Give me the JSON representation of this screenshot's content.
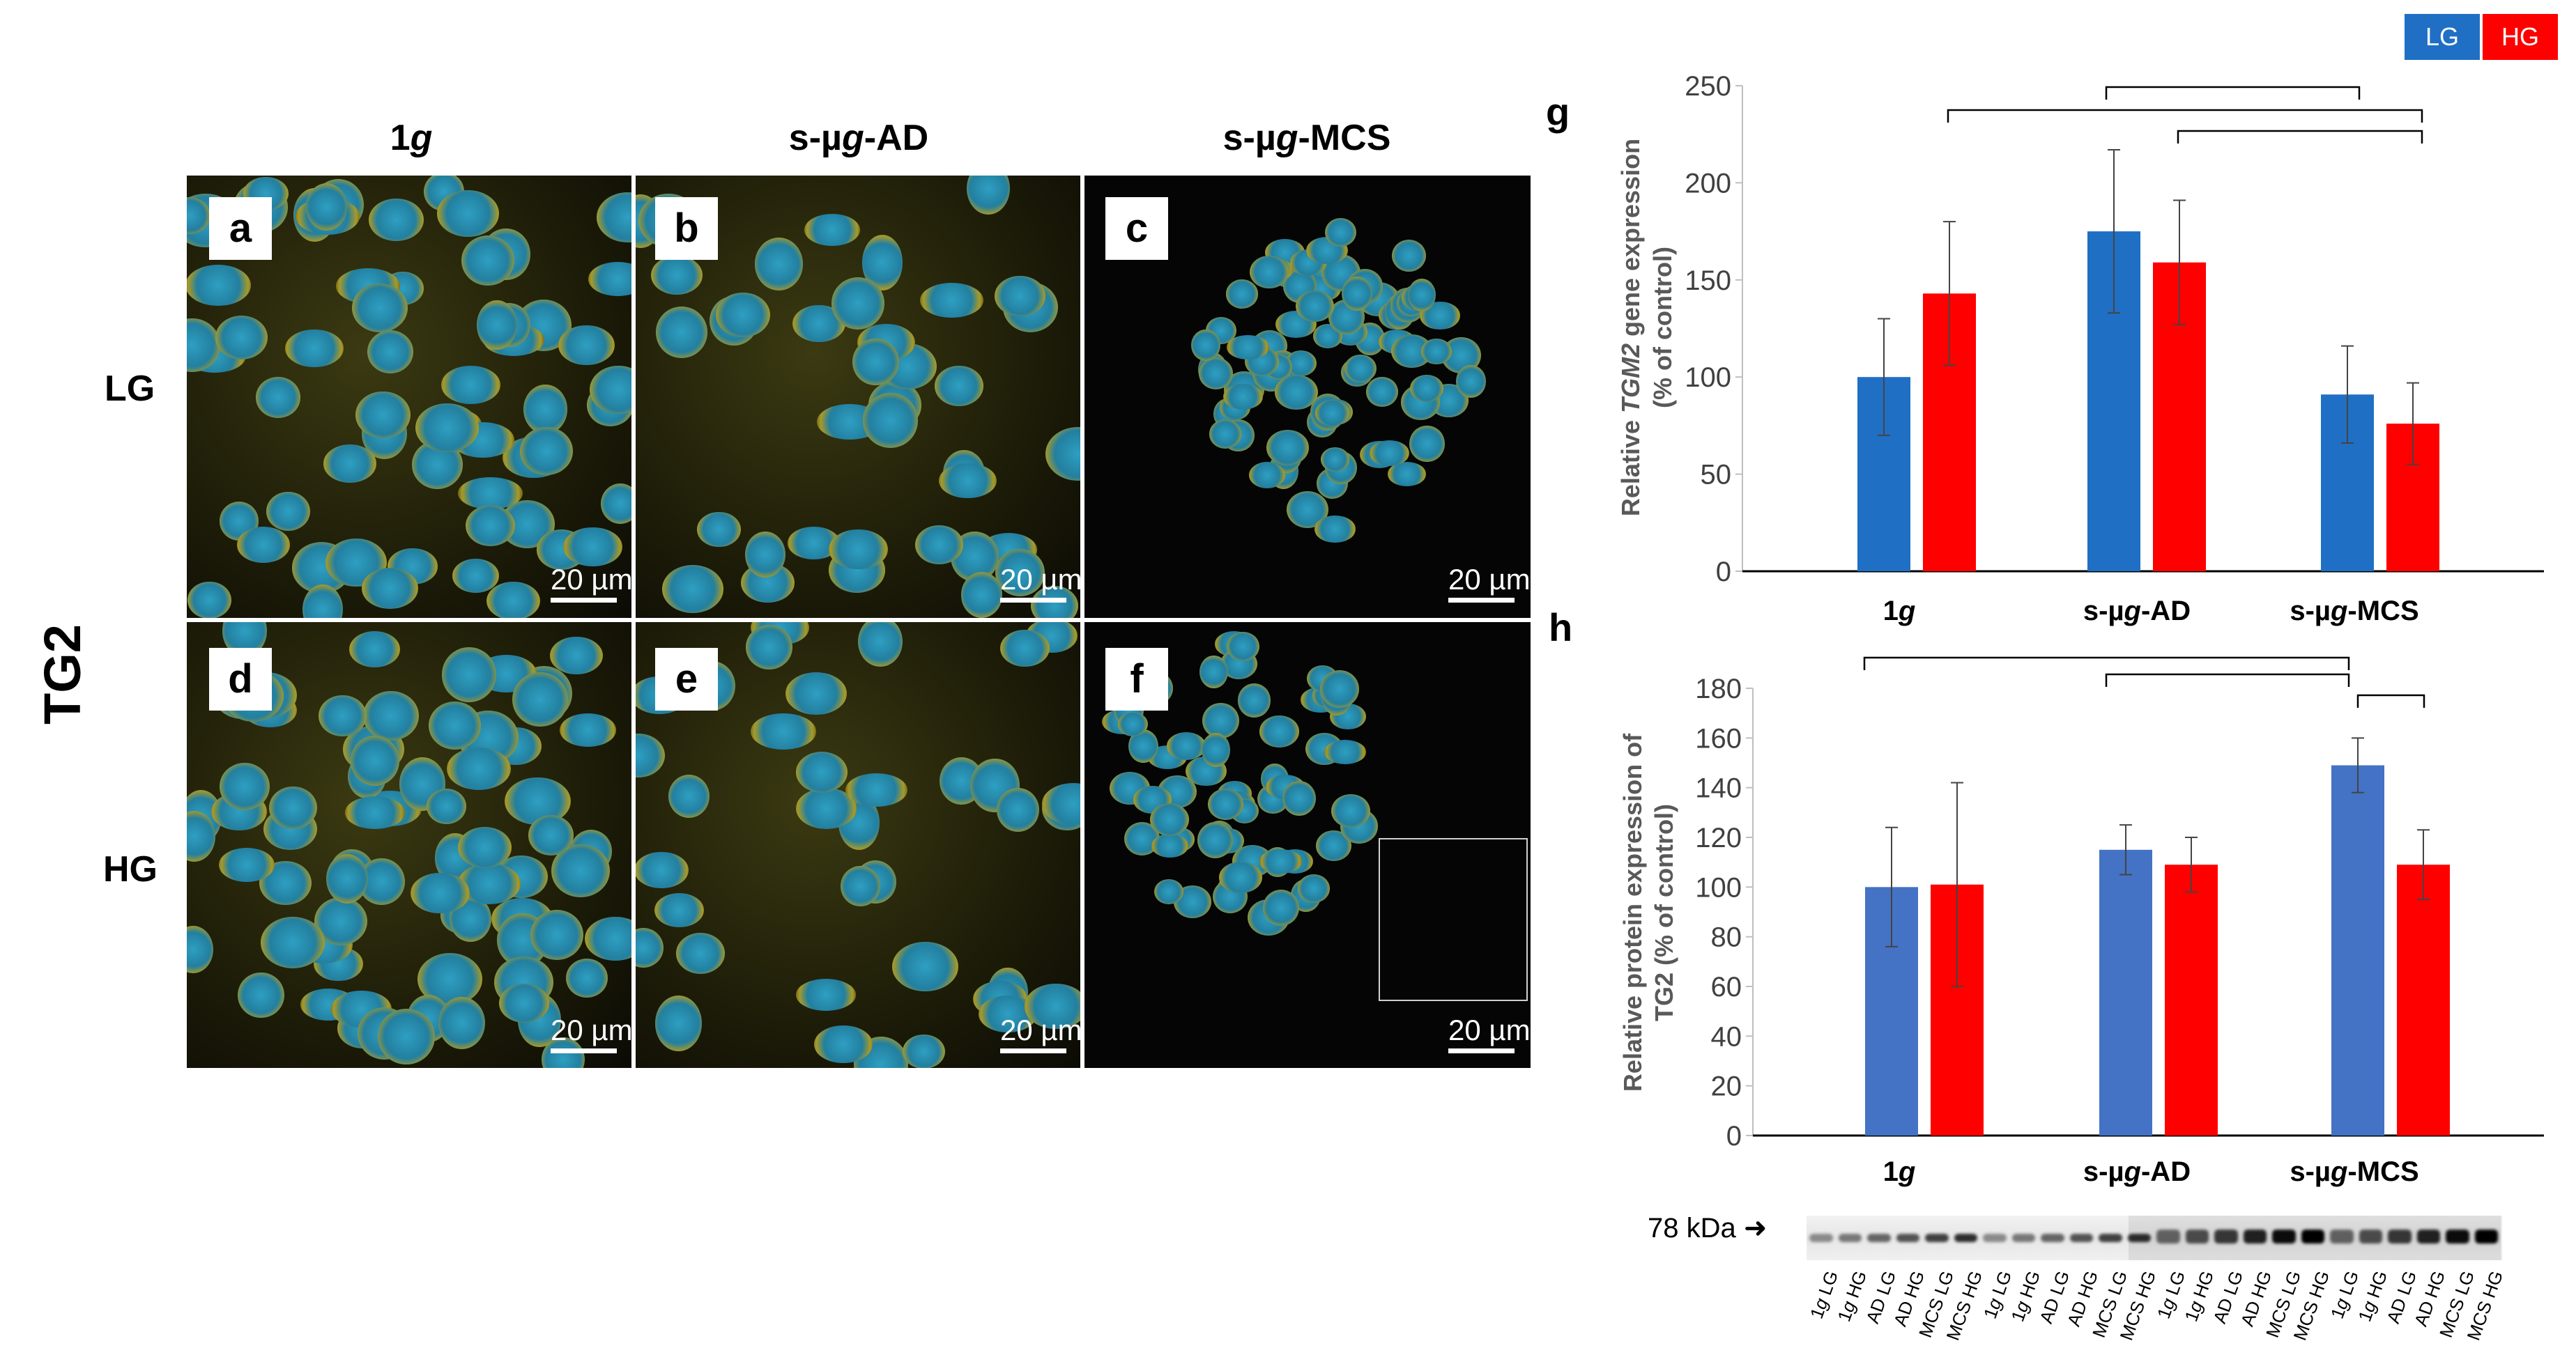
{
  "micro": {
    "main_label": "TG2",
    "columns": [
      {
        "prefix": "1",
        "italic": "g",
        "suffix": ""
      },
      {
        "prefix": "s-µ",
        "italic": "g",
        "suffix": "-AD"
      },
      {
        "prefix": "s-µ",
        "italic": "g",
        "suffix": "-MCS"
      }
    ],
    "rows": [
      "LG",
      "HG"
    ],
    "panels": [
      "a",
      "b",
      "c",
      "d",
      "e",
      "f"
    ],
    "scale_label": "20 µm"
  },
  "legend": [
    {
      "label": "LG",
      "color": "#1f6fc5"
    },
    {
      "label": "HG",
      "color": "#ff0000"
    }
  ],
  "chart_data": [
    {
      "panel_label": "g",
      "type": "bar",
      "categories": [
        "1g",
        "s-µg-AD",
        "s-µg-MCS"
      ],
      "series": [
        {
          "name": "LG",
          "color": "#1f6fc5",
          "values": [
            100,
            175,
            91
          ],
          "errors": [
            30,
            42,
            25
          ]
        },
        {
          "name": "HG",
          "color": "#ff0000",
          "values": [
            143,
            159,
            76
          ],
          "errors": [
            37,
            32,
            21
          ]
        }
      ],
      "ylabel_parts": [
        "Relative ",
        "TGM2",
        " gene expression"
      ],
      "ylabel_line2": "(% of control)",
      "ylim": [
        0,
        250
      ],
      "yticks": [
        0,
        50,
        100,
        150,
        200,
        250
      ],
      "xlabel_parts": [
        [
          "1",
          "g",
          ""
        ],
        [
          "s-µ",
          "g",
          "-AD"
        ],
        [
          "s-µ",
          "g",
          "-MCS"
        ]
      ]
    },
    {
      "panel_label": "h",
      "type": "bar",
      "categories": [
        "1g",
        "s-µg-AD",
        "s-µg-MCS"
      ],
      "series": [
        {
          "name": "LG",
          "color": "#4472c4",
          "values": [
            100,
            115,
            149
          ],
          "errors": [
            24,
            10,
            11
          ]
        },
        {
          "name": "HG",
          "color": "#ff0000",
          "values": [
            101,
            109,
            109
          ],
          "errors": [
            41,
            11,
            14
          ]
        }
      ],
      "ylabel_line1": "Relative protein expression of",
      "ylabel_line2": "TG2  (% of control)",
      "ylim": [
        0,
        180
      ],
      "yticks": [
        0,
        20,
        40,
        60,
        80,
        100,
        120,
        140,
        160,
        180
      ],
      "xlabel_parts": [
        [
          "1",
          "g",
          ""
        ],
        [
          "s-µ",
          "g",
          "-AD"
        ],
        [
          "s-µ",
          "g",
          "-MCS"
        ]
      ]
    }
  ],
  "blot": {
    "kda_label": "78 kDa",
    "lanes": [
      [
        "1",
        "g",
        " LG"
      ],
      [
        "1",
        "g",
        " HG"
      ],
      [
        "",
        "",
        "AD LG"
      ],
      [
        "",
        "",
        "AD HG"
      ],
      [
        "",
        "",
        "MCS LG"
      ],
      [
        "",
        "",
        "MCS HG"
      ],
      [
        "1",
        "g",
        " LG"
      ],
      [
        "1",
        "g",
        " HG"
      ],
      [
        "",
        "",
        "AD LG"
      ],
      [
        "",
        "",
        "AD HG"
      ],
      [
        "",
        "",
        "MCS LG"
      ],
      [
        "",
        "",
        "MCS HG"
      ],
      [
        "1",
        "g",
        " LG"
      ],
      [
        "1",
        "g",
        " HG"
      ],
      [
        "",
        "",
        "AD LG"
      ],
      [
        "",
        "",
        "AD HG"
      ],
      [
        "",
        "",
        "MCS LG"
      ],
      [
        "",
        "",
        "MCS HG"
      ],
      [
        "1",
        "g",
        " LG"
      ],
      [
        "1",
        "g",
        " HG"
      ],
      [
        "",
        "",
        "AD LG"
      ],
      [
        "",
        "",
        "AD HG"
      ],
      [
        "",
        "",
        "MCS LG"
      ],
      [
        "",
        "",
        "MCS HG"
      ]
    ]
  }
}
